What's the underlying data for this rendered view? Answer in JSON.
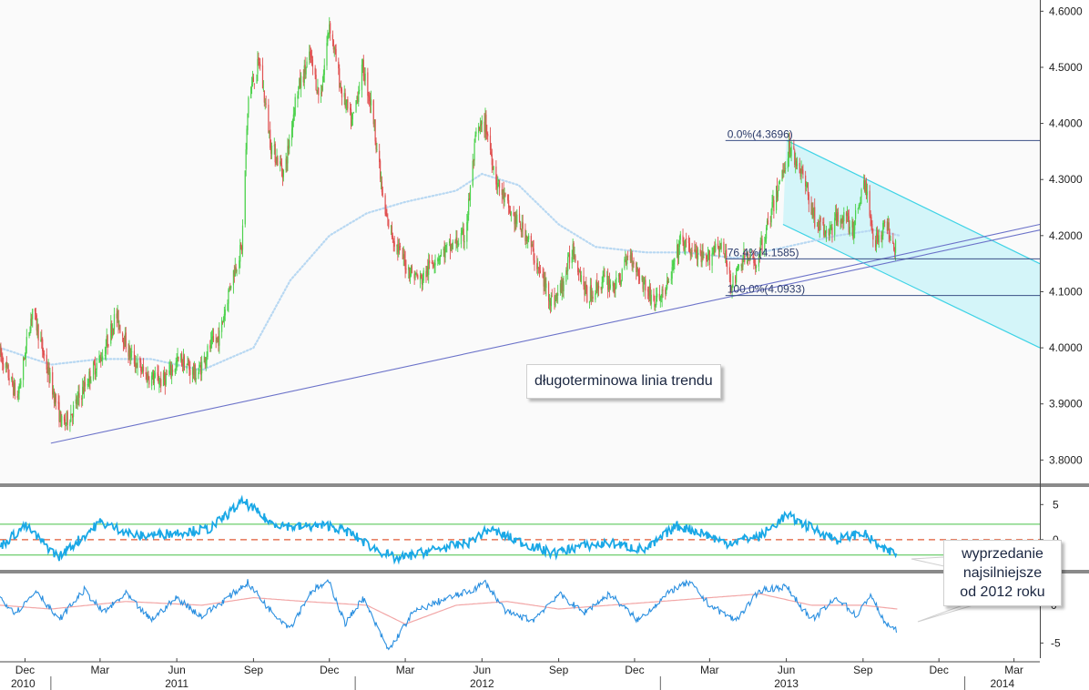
{
  "chart_data": {
    "type": "line",
    "symbol": "",
    "x_range": [
      "2010-11-01",
      "2014-04-01"
    ],
    "x_month_labels": [
      "Dec",
      "Mar",
      "Jun",
      "Sep",
      "Dec",
      "Mar",
      "Jun",
      "Sep",
      "Dec",
      "Mar",
      "Jun",
      "Sep",
      "Dec",
      "Mar"
    ],
    "x_month_dates": [
      "2010-12-01",
      "2011-03-01",
      "2011-06-01",
      "2011-09-01",
      "2011-12-01",
      "2012-03-01",
      "2012-06-01",
      "2012-09-01",
      "2012-12-01",
      "2013-03-01",
      "2013-06-01",
      "2013-09-01",
      "2013-12-01",
      "2014-03-01"
    ],
    "x_year_labels": [
      "2010",
      "2011",
      "2012",
      "2013",
      "2014"
    ],
    "x_year_dates": [
      "2010-11-01",
      "2011-06-01",
      "2012-06-01",
      "2013-06-01",
      "2014-02-15"
    ],
    "x_year_dividers": [
      "2011-01-01",
      "2012-01-01",
      "2013-01-01",
      "2014-01-01"
    ],
    "main_panel": {
      "ylim": [
        3.76,
        4.62
      ],
      "y_ticks": [
        "3.8000",
        "3.9000",
        "4.0000",
        "4.1000",
        "4.2000",
        "4.3000",
        "4.4000",
        "4.5000",
        "4.6000"
      ],
      "y_tick_values": [
        3.8,
        3.9,
        4.0,
        4.1,
        4.2,
        4.3,
        4.4,
        4.5,
        4.6
      ],
      "price_anchors": [
        [
          "2010-11-01",
          3.99
        ],
        [
          "2010-11-22",
          3.91
        ],
        [
          "2010-12-10",
          4.07
        ],
        [
          "2010-12-28",
          3.96
        ],
        [
          "2011-01-15",
          3.86
        ],
        [
          "2011-01-28",
          3.89
        ],
        [
          "2011-02-20",
          3.96
        ],
        [
          "2011-03-05",
          3.99
        ],
        [
          "2011-03-20",
          4.06
        ],
        [
          "2011-04-05",
          3.99
        ],
        [
          "2011-04-25",
          3.95
        ],
        [
          "2011-05-15",
          3.94
        ],
        [
          "2011-06-05",
          3.98
        ],
        [
          "2011-06-25",
          3.95
        ],
        [
          "2011-07-10",
          4.0
        ],
        [
          "2011-07-22",
          4.02
        ],
        [
          "2011-08-05",
          4.12
        ],
        [
          "2011-08-18",
          4.18
        ],
        [
          "2011-08-26",
          4.45
        ],
        [
          "2011-09-08",
          4.51
        ],
        [
          "2011-09-22",
          4.36
        ],
        [
          "2011-10-08",
          4.31
        ],
        [
          "2011-10-22",
          4.45
        ],
        [
          "2011-11-08",
          4.52
        ],
        [
          "2011-11-20",
          4.44
        ],
        [
          "2011-12-01",
          4.58
        ],
        [
          "2011-12-15",
          4.46
        ],
        [
          "2011-12-28",
          4.4
        ],
        [
          "2012-01-10",
          4.5
        ],
        [
          "2012-01-22",
          4.42
        ],
        [
          "2012-02-05",
          4.24
        ],
        [
          "2012-02-20",
          4.18
        ],
        [
          "2012-03-05",
          4.14
        ],
        [
          "2012-03-20",
          4.12
        ],
        [
          "2012-04-05",
          4.16
        ],
        [
          "2012-04-25",
          4.18
        ],
        [
          "2012-05-12",
          4.2
        ],
        [
          "2012-05-25",
          4.38
        ],
        [
          "2012-06-05",
          4.4
        ],
        [
          "2012-06-18",
          4.3
        ],
        [
          "2012-07-05",
          4.24
        ],
        [
          "2012-07-25",
          4.2
        ],
        [
          "2012-08-10",
          4.13
        ],
        [
          "2012-08-25",
          4.08
        ],
        [
          "2012-09-05",
          4.11
        ],
        [
          "2012-09-18",
          4.18
        ],
        [
          "2012-10-05",
          4.09
        ],
        [
          "2012-10-25",
          4.12
        ],
        [
          "2012-11-10",
          4.11
        ],
        [
          "2012-11-25",
          4.17
        ],
        [
          "2012-12-10",
          4.12
        ],
        [
          "2012-12-25",
          4.08
        ],
        [
          "2013-01-10",
          4.11
        ],
        [
          "2013-01-25",
          4.19
        ],
        [
          "2013-02-10",
          4.17
        ],
        [
          "2013-02-25",
          4.15
        ],
        [
          "2013-03-10",
          4.19
        ],
        [
          "2013-03-20",
          4.16
        ],
        [
          "2013-03-28",
          4.11
        ],
        [
          "2013-04-10",
          4.16
        ],
        [
          "2013-04-25",
          4.15
        ],
        [
          "2013-05-10",
          4.22
        ],
        [
          "2013-05-25",
          4.3
        ],
        [
          "2013-06-05",
          4.36
        ],
        [
          "2013-06-20",
          4.31
        ],
        [
          "2013-07-05",
          4.23
        ],
        [
          "2013-07-20",
          4.2
        ],
        [
          "2013-08-05",
          4.24
        ],
        [
          "2013-08-20",
          4.21
        ],
        [
          "2013-09-02",
          4.3
        ],
        [
          "2013-09-15",
          4.19
        ],
        [
          "2013-09-30",
          4.22
        ],
        [
          "2013-10-10",
          4.18
        ]
      ],
      "moving_average": [
        [
          "2010-11-01",
          4.0
        ],
        [
          "2011-01-01",
          3.97
        ],
        [
          "2011-03-01",
          3.98
        ],
        [
          "2011-05-01",
          3.98
        ],
        [
          "2011-07-01",
          3.96
        ],
        [
          "2011-09-01",
          4.0
        ],
        [
          "2011-10-15",
          4.12
        ],
        [
          "2011-12-01",
          4.2
        ],
        [
          "2012-01-15",
          4.24
        ],
        [
          "2012-03-01",
          4.26
        ],
        [
          "2012-05-01",
          4.28
        ],
        [
          "2012-06-01",
          4.31
        ],
        [
          "2012-07-15",
          4.29
        ],
        [
          "2012-09-01",
          4.22
        ],
        [
          "2012-10-15",
          4.18
        ],
        [
          "2012-12-15",
          4.17
        ],
        [
          "2013-02-01",
          4.17
        ],
        [
          "2013-04-01",
          4.16
        ],
        [
          "2013-06-01",
          4.18
        ],
        [
          "2013-08-01",
          4.2
        ],
        [
          "2013-09-15",
          4.21
        ],
        [
          "2013-10-15",
          4.2
        ]
      ],
      "trend_line": {
        "from": [
          "2011-01-01",
          3.83
        ],
        "to": [
          "2014-04-01",
          4.21
        ]
      },
      "trend_line_parallel": {
        "from": [
          "2013-03-28",
          4.1
        ],
        "to": [
          "2014-04-01",
          4.22
        ]
      },
      "channel": {
        "upper": {
          "from": [
            "2013-06-01",
            4.37
          ],
          "to": [
            "2014-04-01",
            4.15
          ]
        },
        "lower": {
          "from": [
            "2013-05-28",
            4.22
          ],
          "to": [
            "2014-04-01",
            4.0
          ]
        }
      },
      "fibonacci": [
        {
          "label": "0.0%(4.3696)",
          "value": 4.3696,
          "start": "2013-03-20"
        },
        {
          "label": "76.4%(4.1585)",
          "value": 4.1585,
          "start": "2013-03-20"
        },
        {
          "label": "100.0%(4.0933)",
          "value": 4.0933,
          "start": "2013-03-20"
        }
      ],
      "annotation": "długoterminowa linia trendu"
    },
    "panel2": {
      "ylim": [
        -4.3,
        7.5
      ],
      "y_ticks": [
        "5",
        "0"
      ],
      "y_tick_values": [
        5,
        0
      ],
      "upper_band": 2.2,
      "lower_band": -2.2,
      "zero_line": 0,
      "anchors": [
        [
          "2010-11-01",
          -1.0
        ],
        [
          "2010-12-01",
          2.0
        ],
        [
          "2011-01-10",
          -2.5
        ],
        [
          "2011-03-01",
          2.5
        ],
        [
          "2011-04-15",
          0.5
        ],
        [
          "2011-06-01",
          1.0
        ],
        [
          "2011-07-10",
          1.5
        ],
        [
          "2011-08-20",
          5.5
        ],
        [
          "2011-09-20",
          2.5
        ],
        [
          "2011-10-20",
          1.8
        ],
        [
          "2011-12-01",
          2.0
        ],
        [
          "2011-12-25",
          1.0
        ],
        [
          "2012-01-20",
          -1.0
        ],
        [
          "2012-02-20",
          -2.8
        ],
        [
          "2012-04-01",
          -1.5
        ],
        [
          "2012-05-15",
          -0.5
        ],
        [
          "2012-06-10",
          1.5
        ],
        [
          "2012-07-10",
          0.0
        ],
        [
          "2012-08-25",
          -2.0
        ],
        [
          "2012-09-25",
          -1.0
        ],
        [
          "2012-11-01",
          -0.5
        ],
        [
          "2012-12-15",
          -1.5
        ],
        [
          "2013-01-20",
          2.0
        ],
        [
          "2013-02-20",
          1.0
        ],
        [
          "2013-03-20",
          -0.5
        ],
        [
          "2013-05-01",
          0.5
        ],
        [
          "2013-06-01",
          3.5
        ],
        [
          "2013-06-25",
          2.0
        ],
        [
          "2013-08-01",
          0.0
        ],
        [
          "2013-09-01",
          1.0
        ],
        [
          "2013-09-25",
          -1.5
        ],
        [
          "2013-10-12",
          -2.0
        ]
      ]
    },
    "panel3": {
      "ylim": [
        -7.0,
        4.2
      ],
      "y_ticks": [
        "0",
        "-5"
      ],
      "y_tick_values": [
        0,
        -5
      ],
      "legend": "",
      "anchors": [
        [
          "2010-11-01",
          1.0
        ],
        [
          "2010-11-20",
          -1.0
        ],
        [
          "2010-12-15",
          2.0
        ],
        [
          "2011-01-10",
          -2.0
        ],
        [
          "2011-02-10",
          2.0
        ],
        [
          "2011-03-05",
          -1.0
        ],
        [
          "2011-04-01",
          1.5
        ],
        [
          "2011-05-01",
          -2.0
        ],
        [
          "2011-06-01",
          1.0
        ],
        [
          "2011-07-01",
          -1.5
        ],
        [
          "2011-08-01",
          1.0
        ],
        [
          "2011-08-25",
          3.0
        ],
        [
          "2011-09-20",
          -0.5
        ],
        [
          "2011-10-15",
          -3.0
        ],
        [
          "2011-11-10",
          2.0
        ],
        [
          "2011-12-01",
          3.0
        ],
        [
          "2011-12-20",
          -2.5
        ],
        [
          "2012-01-10",
          1.0
        ],
        [
          "2012-02-01",
          -4.0
        ],
        [
          "2012-02-10",
          -6.0
        ],
        [
          "2012-03-10",
          -1.0
        ],
        [
          "2012-04-10",
          0.5
        ],
        [
          "2012-05-20",
          2.0
        ],
        [
          "2012-06-05",
          3.0
        ],
        [
          "2012-07-01",
          -1.0
        ],
        [
          "2012-08-01",
          -2.0
        ],
        [
          "2012-09-01",
          1.5
        ],
        [
          "2012-10-01",
          -1.0
        ],
        [
          "2012-11-01",
          1.5
        ],
        [
          "2012-12-05",
          -2.0
        ],
        [
          "2013-01-15",
          2.0
        ],
        [
          "2013-02-05",
          3.0
        ],
        [
          "2013-03-01",
          0.0
        ],
        [
          "2013-04-01",
          -2.0
        ],
        [
          "2013-05-01",
          2.0
        ],
        [
          "2013-06-01",
          2.5
        ],
        [
          "2013-07-01",
          -2.0
        ],
        [
          "2013-08-01",
          1.0
        ],
        [
          "2013-08-25",
          -1.5
        ],
        [
          "2013-09-10",
          1.5
        ],
        [
          "2013-09-25",
          -2.0
        ],
        [
          "2013-10-12",
          -3.5
        ]
      ],
      "signal_anchors": [
        [
          "2010-11-01",
          0.0
        ],
        [
          "2011-01-01",
          -0.5
        ],
        [
          "2011-04-01",
          0.5
        ],
        [
          "2011-07-01",
          0.0
        ],
        [
          "2011-09-01",
          1.0
        ],
        [
          "2011-11-01",
          0.5
        ],
        [
          "2012-01-15",
          0.0
        ],
        [
          "2012-03-01",
          -2.5
        ],
        [
          "2012-05-01",
          0.0
        ],
        [
          "2012-07-01",
          0.5
        ],
        [
          "2012-09-01",
          -0.5
        ],
        [
          "2012-11-01",
          0.0
        ],
        [
          "2013-01-01",
          0.5
        ],
        [
          "2013-03-01",
          1.0
        ],
        [
          "2013-05-01",
          1.5
        ],
        [
          "2013-07-01",
          0.0
        ],
        [
          "2013-09-01",
          0.0
        ],
        [
          "2013-10-12",
          -0.5
        ]
      ]
    },
    "colors": {
      "candle_up": "#4bd14b",
      "candle_down": "#e05151",
      "moving_average": "#b8d8f2",
      "trend_line": "#6b72c9",
      "channel_edge": "#3fd3e6",
      "channel_fill": "#cdf3f8",
      "fib_line": "#3a4e86",
      "osc_line": "#1aa8e6",
      "band_line": "#48c048",
      "zero_line": "#e05a35",
      "macd_line": "#2a8fe0",
      "signal_line": "#f2a6a6"
    },
    "callouts": {
      "oversold": [
        "wyprzedanie",
        "najsilniejsze",
        "od 2012 roku"
      ]
    }
  }
}
